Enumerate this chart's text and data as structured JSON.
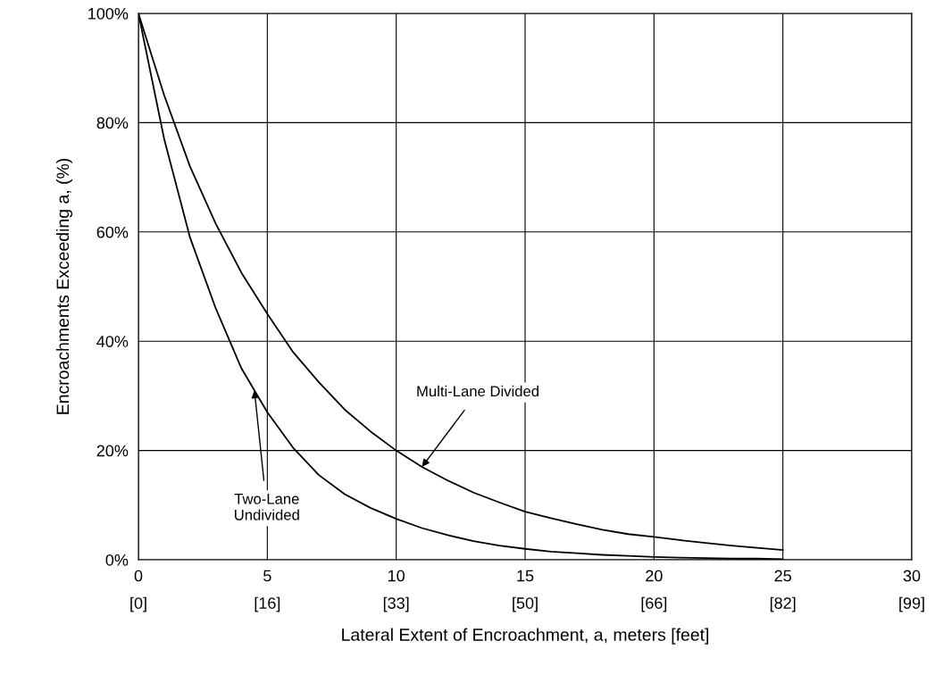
{
  "chart_data": {
    "type": "line",
    "xlabel": "Lateral Extent of Encroachment, a, meters [feet]",
    "ylabel": "Encroachments Exceeding a, (%)",
    "x": [
      0,
      1,
      2,
      3,
      4,
      5,
      6,
      7,
      8,
      9,
      10,
      11,
      12,
      13,
      14,
      15,
      16,
      17,
      18,
      19,
      20,
      21,
      22,
      23,
      24,
      25
    ],
    "series": [
      {
        "color": "#000000",
        "values": [
          100,
          85,
          72,
          61.5,
          52.5,
          45,
          38,
          32.5,
          27.5,
          23.5,
          20,
          17,
          14.5,
          12.3,
          10.5,
          8.8,
          7.6,
          6.5,
          5.5,
          4.7,
          4.2,
          3.6,
          3.1,
          2.6,
          2.2,
          1.8
        ]
      },
      {
        "color": "#000000",
        "values": [
          100,
          77,
          59,
          46,
          35,
          27,
          20.5,
          15.5,
          12,
          9.5,
          7.5,
          5.8,
          4.5,
          3.4,
          2.6,
          2,
          1.5,
          1.2,
          0.9,
          0.7,
          0.5,
          0.4,
          0.3,
          0.2,
          0.2,
          0.1
        ]
      }
    ],
    "annotations": [
      {
        "text": "Multi-Lane Divided",
        "x": 11,
        "y": 17
      },
      {
        "text": "Two-Lane\nUndivided",
        "x": 4.5,
        "y": 31
      },
      "[0]",
      "[16]",
      "[33]",
      "[50]",
      "[66]",
      "[82]",
      "[99]"
    ],
    "xlim": [
      0,
      30
    ],
    "ylim": [
      0,
      100
    ],
    "xticks": [
      0,
      5,
      10,
      15,
      20,
      25,
      30
    ],
    "yticks": [
      {
        "value": 0,
        "label": "0%"
      },
      {
        "value": 20,
        "label": "20%"
      },
      {
        "value": 40,
        "label": "40%"
      },
      {
        "value": 60,
        "label": "60%"
      },
      {
        "value": 80,
        "label": "80%"
      },
      {
        "value": 100,
        "label": "100%"
      }
    ],
    "grid": true,
    "marker": "none",
    "line_style": "solid"
  }
}
